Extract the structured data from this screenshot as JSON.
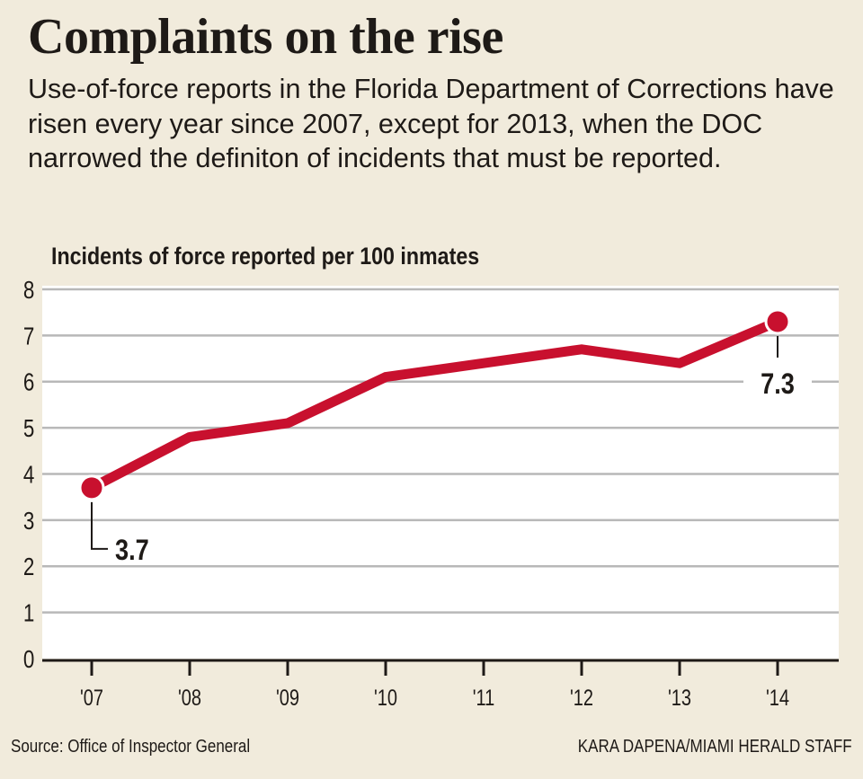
{
  "header": {
    "title": "Complaints  on the rise",
    "subtitle": "Use-of-force reports in the Florida Department of Corrections have risen every year since 2007, except for 2013, when the DOC narrowed the definiton of incidents that must be reported."
  },
  "colors": {
    "background": "#f1ebdc",
    "plot_background": "#ffffff",
    "line": "#c8102e",
    "grid": "#b8b8b8",
    "text": "#1e1a17"
  },
  "footer": {
    "source": "Source: Office of Inspector General",
    "credit": "KARA DAPENA/MIAMI HERALD STAFF"
  },
  "chart_data": {
    "type": "line",
    "title": "Incidents of force reported per 100 inmates",
    "xlabel": "",
    "ylabel": "",
    "categories": [
      "'07",
      "'08",
      "'09",
      "'10",
      "'11",
      "'12",
      "'13",
      "'14"
    ],
    "series": [
      {
        "name": "Incidents of force per 100 inmates",
        "values": [
          3.7,
          4.8,
          5.1,
          6.1,
          6.4,
          6.7,
          6.4,
          7.3
        ]
      }
    ],
    "ylim": [
      0,
      8
    ],
    "yticks": [
      0,
      1,
      2,
      3,
      4,
      5,
      6,
      7,
      8
    ],
    "grid": true,
    "legend": "none",
    "annotations": [
      {
        "category": "'07",
        "text": "3.7",
        "placement": "below-right"
      },
      {
        "category": "'14",
        "text": "7.3",
        "placement": "below"
      }
    ]
  }
}
